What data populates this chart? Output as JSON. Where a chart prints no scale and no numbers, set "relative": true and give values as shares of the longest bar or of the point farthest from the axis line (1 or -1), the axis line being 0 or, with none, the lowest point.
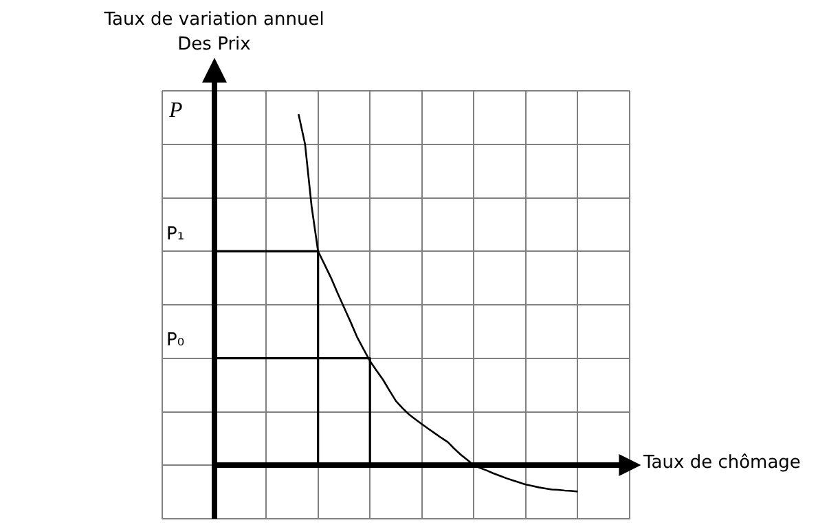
{
  "chart_data": {
    "type": "line",
    "xlabel": "Taux de chômage",
    "ylabel": "Taux de variation annuel\nDes Prix",
    "relative": true,
    "categories": [
      null,
      null,
      null,
      null,
      null,
      null,
      null,
      null,
      null,
      null,
      null,
      null,
      null,
      null,
      null,
      null,
      null,
      null,
      null,
      null,
      null,
      null,
      null,
      null,
      null,
      null,
      null,
      null,
      null,
      null,
      null,
      null,
      null,
      null,
      null,
      null,
      null,
      null,
      null,
      null,
      null,
      null,
      null,
      null,
      null,
      null,
      null,
      null,
      null,
      null,
      null,
      null,
      null,
      null,
      null,
      null,
      null,
      null,
      null,
      null,
      null,
      null,
      null,
      null,
      null,
      null,
      null,
      null,
      null,
      null,
      null,
      null,
      null
    ],
    "annotations": [
      "P"
    ],
    "grid": true,
    "legend": false,
    "marker": "none",
    "line_style": "solid",
    "series": [
      {
        "color": "#000000",
        "values": [
          null,
          null,
          null,
          null,
          null,
          null,
          null,
          null,
          null,
          null,
          null,
          null,
          null,
          null,
          null,
          null,
          null,
          null,
          null,
          null,
          null,
          1,
          0.915,
          0.739,
          0.61,
          0.572,
          0.534,
          0.491,
          0.45,
          0.409,
          0.366,
          0.331,
          0.297,
          0.27,
          0.244,
          0.213,
          0.183,
          0.163,
          0.145,
          0.131,
          0.117,
          0.104,
          0.091,
          0.078,
          0.066,
          0.047,
          0.03,
          0.015,
          0,
          -0.008,
          -0.015,
          -0.023,
          -0.03,
          -0.037,
          -0.043,
          -0.049,
          -0.055,
          -0.059,
          -0.063,
          -0.066,
          -0.069,
          -0.07,
          -0.072,
          -0.073,
          -0.075,
          null,
          null,
          null,
          null,
          null,
          null,
          null,
          null
        ]
      },
      {
        "type": "step",
        "name": "P₁",
        "color": "#000000",
        "values": [
          null,
          null,
          null,
          null,
          null,
          null,
          null,
          null,
          0.61,
          0.61,
          0.61,
          0.61,
          0.61,
          0.61,
          0.61,
          0.61,
          0.61,
          0.61,
          0.61,
          0.61,
          0.61,
          0.61,
          0.61,
          0.61,
          0.61,
          0,
          null,
          null,
          null,
          null,
          null,
          null,
          null,
          null,
          null,
          null,
          null,
          null,
          null,
          null,
          null,
          null,
          null,
          null,
          null,
          null,
          null,
          null,
          null,
          null,
          null,
          null,
          null,
          null,
          null,
          null,
          null,
          null,
          null,
          null,
          null,
          null,
          null,
          null,
          null,
          null,
          null,
          null,
          null,
          null,
          null,
          null,
          null
        ]
      },
      {
        "type": "step",
        "name": "P₀",
        "color": "#000000",
        "values": [
          null,
          null,
          null,
          null,
          null,
          null,
          null,
          null,
          0.305,
          0.305,
          0.305,
          0.305,
          0.305,
          0.305,
          0.305,
          0.305,
          0.305,
          0.305,
          0.305,
          0.305,
          0.305,
          0.305,
          0.305,
          0.305,
          0.305,
          0.305,
          0.305,
          0.305,
          0.305,
          0.305,
          0.305,
          0.305,
          0.305,
          0,
          null,
          null,
          null,
          null,
          null,
          null,
          null,
          null,
          null,
          null,
          null,
          null,
          null,
          null,
          null,
          null,
          null,
          null,
          null,
          null,
          null,
          null,
          null,
          null,
          null,
          null,
          null,
          null,
          null,
          null,
          null,
          null,
          null,
          null,
          null,
          null,
          null,
          null,
          null
        ]
      }
    ]
  }
}
